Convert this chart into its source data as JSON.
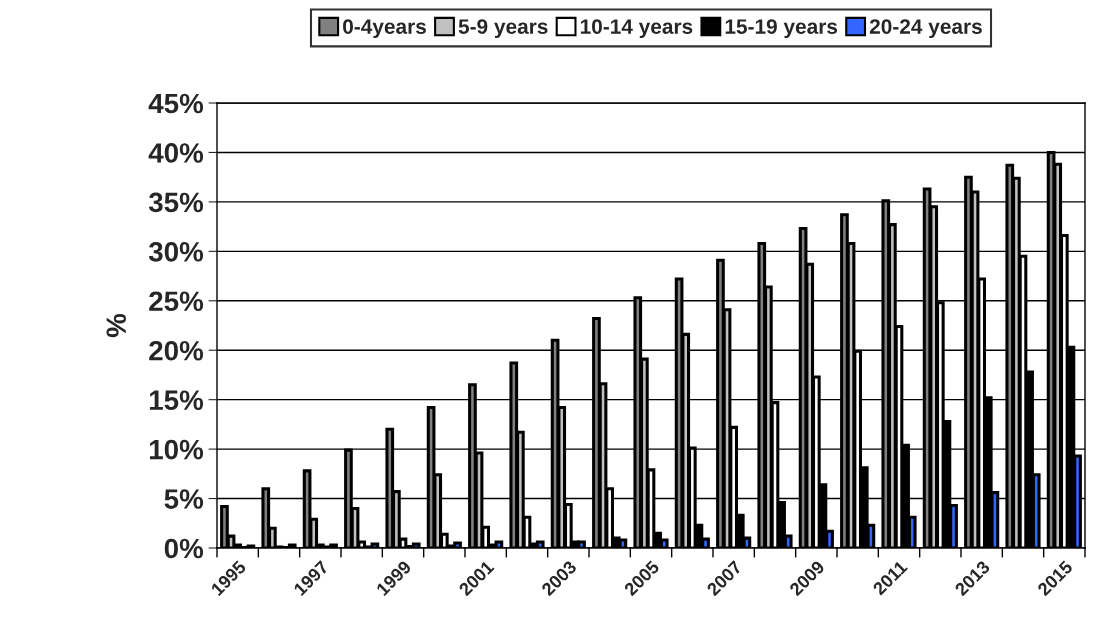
{
  "chart_data": {
    "type": "bar",
    "ylabel": "%",
    "categories": [
      "1995",
      null,
      "1997",
      null,
      "1999",
      null,
      "2001",
      null,
      "2003",
      null,
      "2005",
      null,
      "2007",
      null,
      "2009",
      null,
      "2011",
      null,
      "2013",
      null,
      "2015"
    ],
    "series": [
      {
        "name": "0-4years",
        "color": "#808080",
        "values": [
          4.2,
          6.0,
          7.8,
          9.9,
          12.0,
          14.2,
          16.5,
          18.7,
          21.0,
          23.2,
          25.3,
          27.2,
          29.1,
          30.8,
          32.3,
          33.7,
          35.1,
          36.3,
          37.5,
          38.7,
          40.0
        ]
      },
      {
        "name": "5-9 years",
        "color": "#c0c0c0",
        "values": [
          1.2,
          2.0,
          2.9,
          4.0,
          5.7,
          7.4,
          9.6,
          11.7,
          14.2,
          16.6,
          19.1,
          21.6,
          24.1,
          26.4,
          28.7,
          30.8,
          32.7,
          34.5,
          36.0,
          37.4,
          38.8
        ]
      },
      {
        "name": "10-14 years",
        "color": "#ffffff",
        "values": [
          0.3,
          0.1,
          0.3,
          0.6,
          0.9,
          1.4,
          2.1,
          3.1,
          4.4,
          6.0,
          7.9,
          10.1,
          12.2,
          14.7,
          17.3,
          19.9,
          22.4,
          24.8,
          27.2,
          29.5,
          31.6
        ]
      },
      {
        "name": "15-19 years",
        "color": "#000000",
        "values": [
          0.05,
          0.05,
          0.1,
          0.1,
          0.15,
          0.2,
          0.3,
          0.4,
          0.6,
          1.0,
          1.5,
          2.3,
          3.3,
          4.6,
          6.4,
          8.1,
          10.4,
          12.8,
          15.2,
          17.8,
          20.3
        ]
      },
      {
        "name": "20-24 years",
        "color": "#3366ff",
        "values": [
          0.2,
          0.3,
          0.3,
          0.4,
          0.4,
          0.5,
          0.6,
          0.6,
          0.6,
          0.8,
          0.8,
          0.9,
          1.0,
          1.2,
          1.7,
          2.3,
          3.1,
          4.3,
          5.6,
          7.4,
          9.3
        ]
      }
    ],
    "ylim": [
      0,
      45
    ],
    "yticks": [
      {
        "value": 0,
        "label": "0%"
      },
      {
        "value": 5,
        "label": "5%"
      },
      {
        "value": 10,
        "label": "10%"
      },
      {
        "value": 15,
        "label": "15%"
      },
      {
        "value": 20,
        "label": "20%"
      },
      {
        "value": 25,
        "label": "25%"
      },
      {
        "value": 30,
        "label": "30%"
      },
      {
        "value": 35,
        "label": "35%"
      },
      {
        "value": 40,
        "label": "40%"
      },
      {
        "value": 45,
        "label": "45%"
      }
    ],
    "grid": "y",
    "legend": "top"
  }
}
